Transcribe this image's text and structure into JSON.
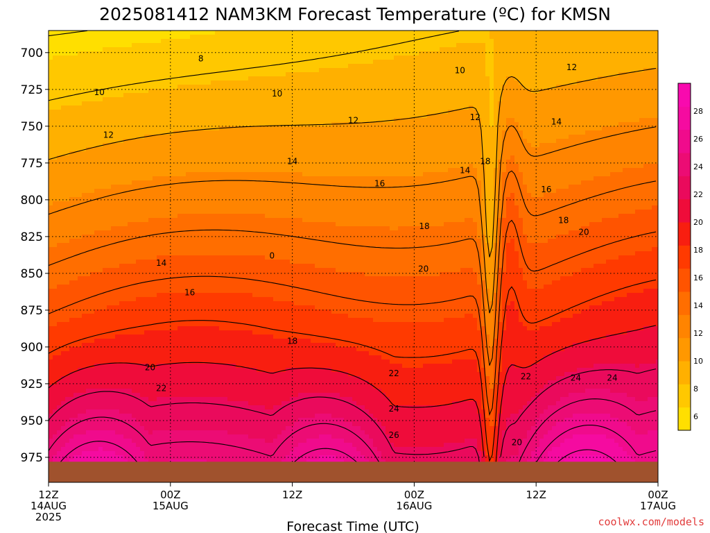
{
  "chart_data": {
    "type": "heatmap",
    "title": "2025081412 NAM3KM Forecast Temperature (ºC) for KMSN",
    "xlabel": "Forecast Time (UTC)",
    "ylabel": "",
    "x_ticks": [
      {
        "hours": 0,
        "line1": "12Z",
        "line2": "14AUG",
        "line3": "2025"
      },
      {
        "hours": 12,
        "line1": "00Z",
        "line2": "15AUG",
        "line3": ""
      },
      {
        "hours": 24,
        "line1": "12Z",
        "line2": "",
        "line3": ""
      },
      {
        "hours": 36,
        "line1": "00Z",
        "line2": "16AUG",
        "line3": ""
      },
      {
        "hours": 48,
        "line1": "12Z",
        "line2": "",
        "line3": ""
      },
      {
        "hours": 60,
        "line1": "00Z",
        "line2": "17AUG",
        "line3": ""
      }
    ],
    "xlim": [
      0,
      60
    ],
    "y_ticks": [
      700,
      725,
      750,
      775,
      800,
      825,
      850,
      875,
      900,
      925,
      950,
      975
    ],
    "ylim_hPa": [
      685,
      992
    ],
    "grid": true,
    "colorbar": {
      "ticks": [
        6,
        8,
        10,
        12,
        14,
        16,
        18,
        20,
        22,
        24,
        26,
        28
      ],
      "range": [
        5,
        30
      ],
      "colors": [
        "#ffdf00",
        "#ffc800",
        "#ffb000",
        "#ff9800",
        "#ff8400",
        "#ff6e00",
        "#ff5400",
        "#ff3a00",
        "#f81e10",
        "#ef0c3a",
        "#ea0a5c",
        "#ec0c74",
        "#f00b8c",
        "#f50ba0",
        "#f80aae"
      ]
    },
    "contour_labels": [
      {
        "hours": 15,
        "hPa": 704,
        "value": "8"
      },
      {
        "hours": 5,
        "hPa": 727,
        "value": "10"
      },
      {
        "hours": 22.5,
        "hPa": 728,
        "value": "10"
      },
      {
        "hours": 40.5,
        "hPa": 712,
        "value": "10"
      },
      {
        "hours": 5.9,
        "hPa": 756,
        "value": "12"
      },
      {
        "hours": 30,
        "hPa": 746,
        "value": "12"
      },
      {
        "hours": 42,
        "hPa": 744,
        "value": "12"
      },
      {
        "hours": 51.5,
        "hPa": 710,
        "value": "12"
      },
      {
        "hours": 24,
        "hPa": 774,
        "value": "14"
      },
      {
        "hours": 41,
        "hPa": 780,
        "value": "14"
      },
      {
        "hours": 50,
        "hPa": 747,
        "value": "14"
      },
      {
        "hours": 11.1,
        "hPa": 843,
        "value": "14"
      },
      {
        "hours": 32.6,
        "hPa": 789,
        "value": "16"
      },
      {
        "hours": 49,
        "hPa": 793,
        "value": "16"
      },
      {
        "hours": 13.9,
        "hPa": 863,
        "value": "16"
      },
      {
        "hours": 37,
        "hPa": 818,
        "value": "18"
      },
      {
        "hours": 43,
        "hPa": 774,
        "value": "18"
      },
      {
        "hours": 50.7,
        "hPa": 814,
        "value": "18"
      },
      {
        "hours": 24,
        "hPa": 896,
        "value": "18"
      },
      {
        "hours": 36.9,
        "hPa": 847,
        "value": "20"
      },
      {
        "hours": 52.7,
        "hPa": 822,
        "value": "20"
      },
      {
        "hours": 10,
        "hPa": 914,
        "value": "20"
      },
      {
        "hours": 46.1,
        "hPa": 965,
        "value": "20"
      },
      {
        "hours": 11.1,
        "hPa": 928,
        "value": "22"
      },
      {
        "hours": 34,
        "hPa": 918,
        "value": "22"
      },
      {
        "hours": 47,
        "hPa": 920,
        "value": "22"
      },
      {
        "hours": 34,
        "hPa": 942,
        "value": "24"
      },
      {
        "hours": 51.9,
        "hPa": 921,
        "value": "24"
      },
      {
        "hours": 55.5,
        "hPa": 921,
        "value": "24"
      },
      {
        "hours": 34,
        "hPa": 960,
        "value": "26"
      },
      {
        "hours": 22,
        "hPa": 838,
        "value": "0"
      }
    ],
    "ground_below_hPa": 978
  },
  "credit": "coolwx.com/models"
}
